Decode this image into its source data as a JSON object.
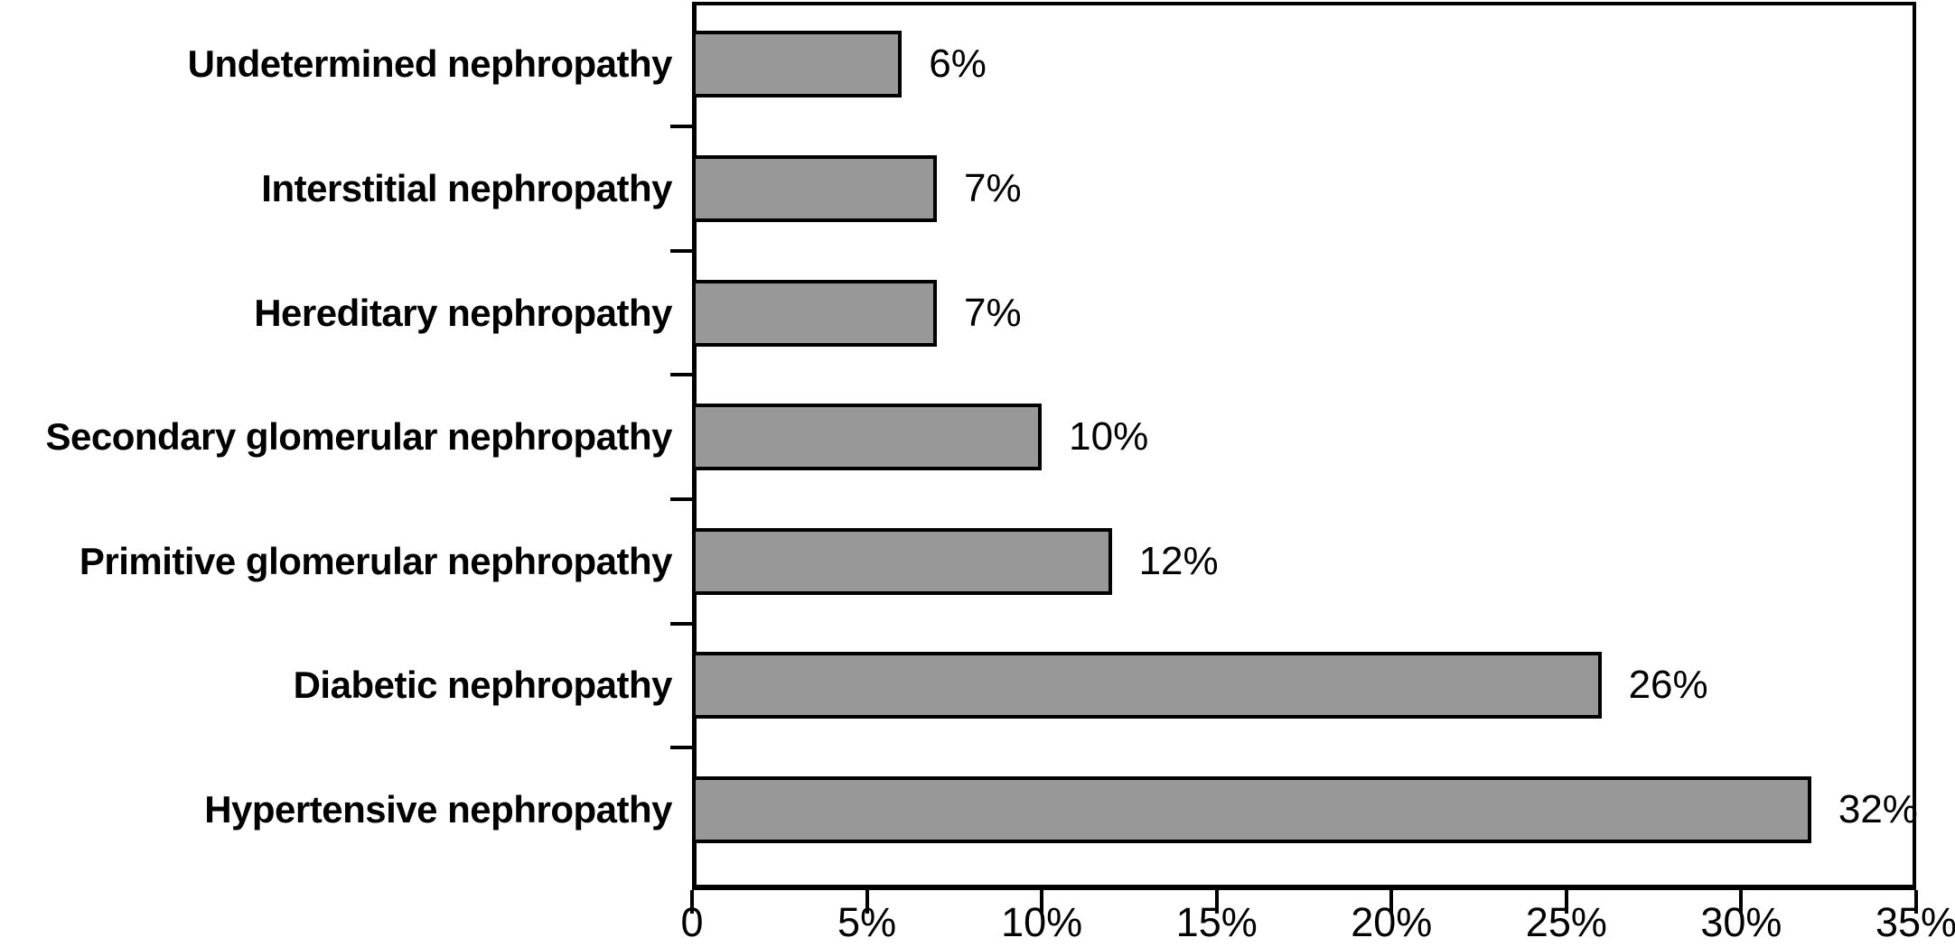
{
  "chart_data": {
    "type": "bar",
    "orientation": "horizontal",
    "title": "",
    "xlabel": "",
    "ylabel": "",
    "categories": [
      "Undetermined nephropathy",
      "Interstitial nephropathy",
      "Hereditary nephropathy",
      "Secondary glomerular nephropathy",
      "Primitive glomerular nephropathy",
      "Diabetic nephropathy",
      "Hypertensive nephropathy"
    ],
    "values": [
      6,
      7,
      7,
      10,
      12,
      26,
      32
    ],
    "value_labels": [
      "6%",
      "7%",
      "7%",
      "10%",
      "12%",
      "26%",
      "32%"
    ],
    "xlim": [
      0,
      35
    ],
    "x_ticks": [
      0,
      5,
      10,
      15,
      20,
      25,
      30,
      35
    ],
    "x_tick_labels": [
      "0",
      "5%",
      "10%",
      "15%",
      "20%",
      "25%",
      "30%",
      "35%"
    ],
    "grid": false,
    "legend": false,
    "colors": {
      "bar_fill": "#989898",
      "bar_border": "#000000",
      "axis": "#000000",
      "text": "#000000",
      "background": "#ffffff"
    }
  }
}
